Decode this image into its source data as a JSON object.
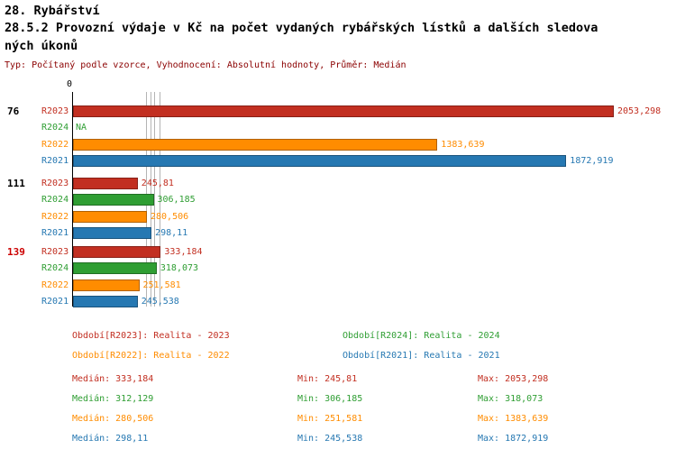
{
  "header": {
    "title": "28. Rybářství",
    "subtitle_line1": "28.5.2 Provozní výdaje v Kč na počet vydaných rybářských lístků a dalších sledova",
    "subtitle_line2": "ných úkonů",
    "meta": "Typ: Počítaný podle vzorce, Vyhodnocení: Absolutní hodnoty, Průměr: Medián"
  },
  "colors": {
    "R2023": "#c22f21",
    "R2024": "#2f9e33",
    "R2022": "#ff8c00",
    "R2021": "#2678b2",
    "meta_text": "#8b0000",
    "group_highlight": "#cc0000",
    "median_line": "#b4b4b4"
  },
  "chart_data": {
    "type": "bar",
    "orientation": "horizontal",
    "title": "28.5.2 Provozní výdaje v Kč na počet vydaných rybářských lístků a dalších sledovaných úkonů",
    "subtitle": "Typ: Počítaný podle vzorce, Vyhodnocení: Absolutní hodnoty, Průměr: Medián",
    "x_axis": {
      "origin_label": "0",
      "min": 0,
      "max": 2053.298
    },
    "series_order": [
      "R2023",
      "R2024",
      "R2022",
      "R2021"
    ],
    "groups": [
      {
        "label": "76",
        "highlight": false,
        "bars": [
          {
            "series": "R2023",
            "value": 2053.298,
            "display": "2053,298"
          },
          {
            "series": "R2024",
            "value": null,
            "display": "NA"
          },
          {
            "series": "R2022",
            "value": 1383.639,
            "display": "1383,639"
          },
          {
            "series": "R2021",
            "value": 1872.919,
            "display": "1872,919"
          }
        ]
      },
      {
        "label": "111",
        "highlight": false,
        "bars": [
          {
            "series": "R2023",
            "value": 245.81,
            "display": "245,81"
          },
          {
            "series": "R2024",
            "value": 306.185,
            "display": "306,185"
          },
          {
            "series": "R2022",
            "value": 280.506,
            "display": "280,506"
          },
          {
            "series": "R2021",
            "value": 298.11,
            "display": "298,11"
          }
        ]
      },
      {
        "label": "139",
        "highlight": true,
        "bars": [
          {
            "series": "R2023",
            "value": 333.184,
            "display": "333,184"
          },
          {
            "series": "R2024",
            "value": 318.073,
            "display": "318,073"
          },
          {
            "series": "R2022",
            "value": 251.581,
            "display": "251,581"
          },
          {
            "series": "R2021",
            "value": 245.538,
            "display": "245,538"
          }
        ]
      }
    ],
    "median_markers": [
      {
        "series": "R2023",
        "value": 333.184
      },
      {
        "series": "R2024",
        "value": 312.129
      },
      {
        "series": "R2022",
        "value": 280.506
      },
      {
        "series": "R2021",
        "value": 298.11
      }
    ],
    "legend": [
      {
        "series": "R2023",
        "label": "Období[R2023]: Realita - 2023"
      },
      {
        "series": "R2024",
        "label": "Období[R2024]: Realita - 2024"
      },
      {
        "series": "R2022",
        "label": "Období[R2022]: Realita - 2022"
      },
      {
        "series": "R2021",
        "label": "Období[R2021]: Realita - 2021"
      }
    ],
    "stats_labels": {
      "median": "Medián",
      "min": "Min",
      "max": "Max"
    },
    "stats": [
      {
        "series": "R2023",
        "median": "333,184",
        "min": "245,81",
        "max": "2053,298"
      },
      {
        "series": "R2024",
        "median": "312,129",
        "min": "306,185",
        "max": "318,073"
      },
      {
        "series": "R2022",
        "median": "280,506",
        "min": "251,581",
        "max": "1383,639"
      },
      {
        "series": "R2021",
        "median": "298,11",
        "min": "245,538",
        "max": "1872,919"
      }
    ]
  }
}
